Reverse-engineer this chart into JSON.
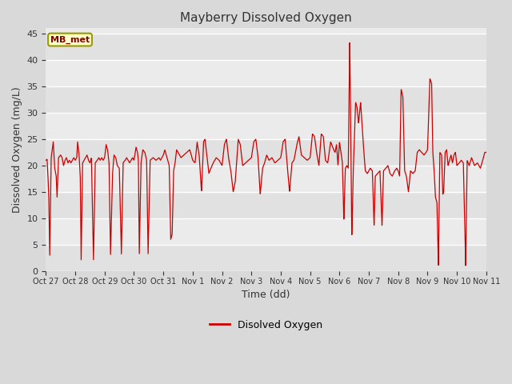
{
  "title": "Mayberry Dissolved Oxygen",
  "xlabel": "Time (dd)",
  "ylabel": "Dissolved Oxygen (mg/L)",
  "legend_label": "Disolved Oxygen",
  "line_color": "#cc0000",
  "ylim": [
    0,
    46
  ],
  "yticks": [
    0,
    5,
    10,
    15,
    20,
    25,
    30,
    35,
    40,
    45
  ],
  "bg_color": "#d9d9d9",
  "plot_bg_color": "#ebebeb",
  "annotation_text": "MB_met",
  "annotation_bg": "#ffffcc",
  "annotation_border": "#999900",
  "x_tick_labels": [
    "Oct 27",
    "Oct 28",
    "Oct 29",
    "Oct 30",
    "Oct 31",
    "Nov 1",
    "Nov 2",
    "Nov 3",
    "Nov 4",
    "Nov 5",
    "Nov 6",
    "Nov 7",
    "Nov 8",
    "Nov 9",
    "Nov 10",
    "Nov 11"
  ],
  "num_ticks": 16
}
